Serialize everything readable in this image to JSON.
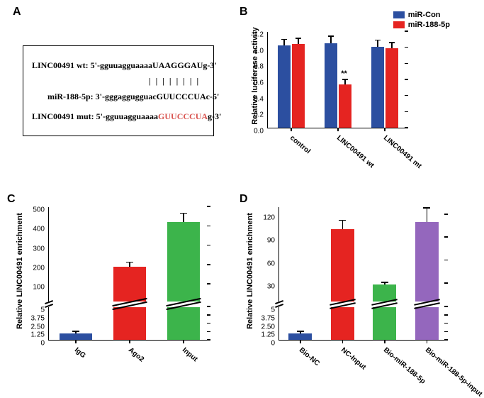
{
  "panelA": {
    "label": "A",
    "linc_wt_label": "LINC00491 wt:",
    "linc_wt_seq_pre": "5'-gguuagguaaaa",
    "linc_wt_seq_site": "UAAGGGAU",
    "linc_wt_seq_post": "g-3'",
    "align_marks": "| | | | | | | |",
    "mir_label": "miR-188-5p:",
    "mir_seq": "3'-gggaggugguacGUUCCCUAc-5'",
    "linc_mut_label": "LINC00491 mut:",
    "linc_mut_seq_pre": "5'-gguuagguaaaa",
    "linc_mut_seq_site": "GUUCCCUA",
    "linc_mut_seq_post": "g-3'"
  },
  "panelB": {
    "label": "B",
    "ylabel": "Relative luciferase activity",
    "ylim": [
      0,
      1.2
    ],
    "ytick_step": 0.2,
    "categories": [
      "control",
      "LINC00491 wt",
      "LINC00491 mt"
    ],
    "series": [
      {
        "name": "miR-Con",
        "color": "#2c4fa0"
      },
      {
        "name": "miR-188-5p",
        "color": "#e52421"
      }
    ],
    "values": [
      [
        1.02,
        1.05,
        1.01
      ],
      [
        1.04,
        0.54,
        0.99
      ]
    ],
    "errors": [
      [
        0.08,
        0.09,
        0.08
      ],
      [
        0.07,
        0.06,
        0.07
      ]
    ],
    "sig": "**",
    "sig_pos": {
      "cat": 1,
      "series": 1
    },
    "bar_width": 0.35,
    "legend_pos": "top-right"
  },
  "panelC": {
    "label": "C",
    "ylabel": "Relative LINC00491 enrichment",
    "categories": [
      "IgG",
      "Ago2",
      "Input"
    ],
    "colors": [
      "#2c4fa0",
      "#e52421",
      "#3cb44b"
    ],
    "values": [
      1.0,
      190,
      420
    ],
    "errors": [
      0.3,
      22,
      45
    ],
    "lower_ylim": [
      0,
      5.0
    ],
    "lower_yticks": [
      0,
      1.25,
      2.5,
      3.75,
      5.0
    ],
    "upper_ylim": [
      5,
      500
    ],
    "upper_yticks": [
      100,
      200,
      300,
      400,
      500
    ],
    "break_ratio": 0.25,
    "bar_width": 0.6
  },
  "panelD": {
    "label": "D",
    "ylabel": "Relative LINC00491 enrichment",
    "categories": [
      "Bio-NC",
      "NC-Input",
      "Bio-miR-188-5p",
      "Bio-miR-188-5p-input"
    ],
    "colors": [
      "#2c4fa0",
      "#e52421",
      "#3cb44b",
      "#9467bd"
    ],
    "values": [
      1.0,
      100,
      28,
      110
    ],
    "errors": [
      0.3,
      12,
      3,
      18
    ],
    "lower_ylim": [
      0,
      5.0
    ],
    "lower_yticks": [
      0,
      1.25,
      2.5,
      3.75,
      5.0
    ],
    "upper_ylim": [
      5,
      130
    ],
    "upper_yticks": [
      30,
      60,
      90,
      120
    ],
    "break_ratio": 0.25,
    "bar_width": 0.55
  }
}
